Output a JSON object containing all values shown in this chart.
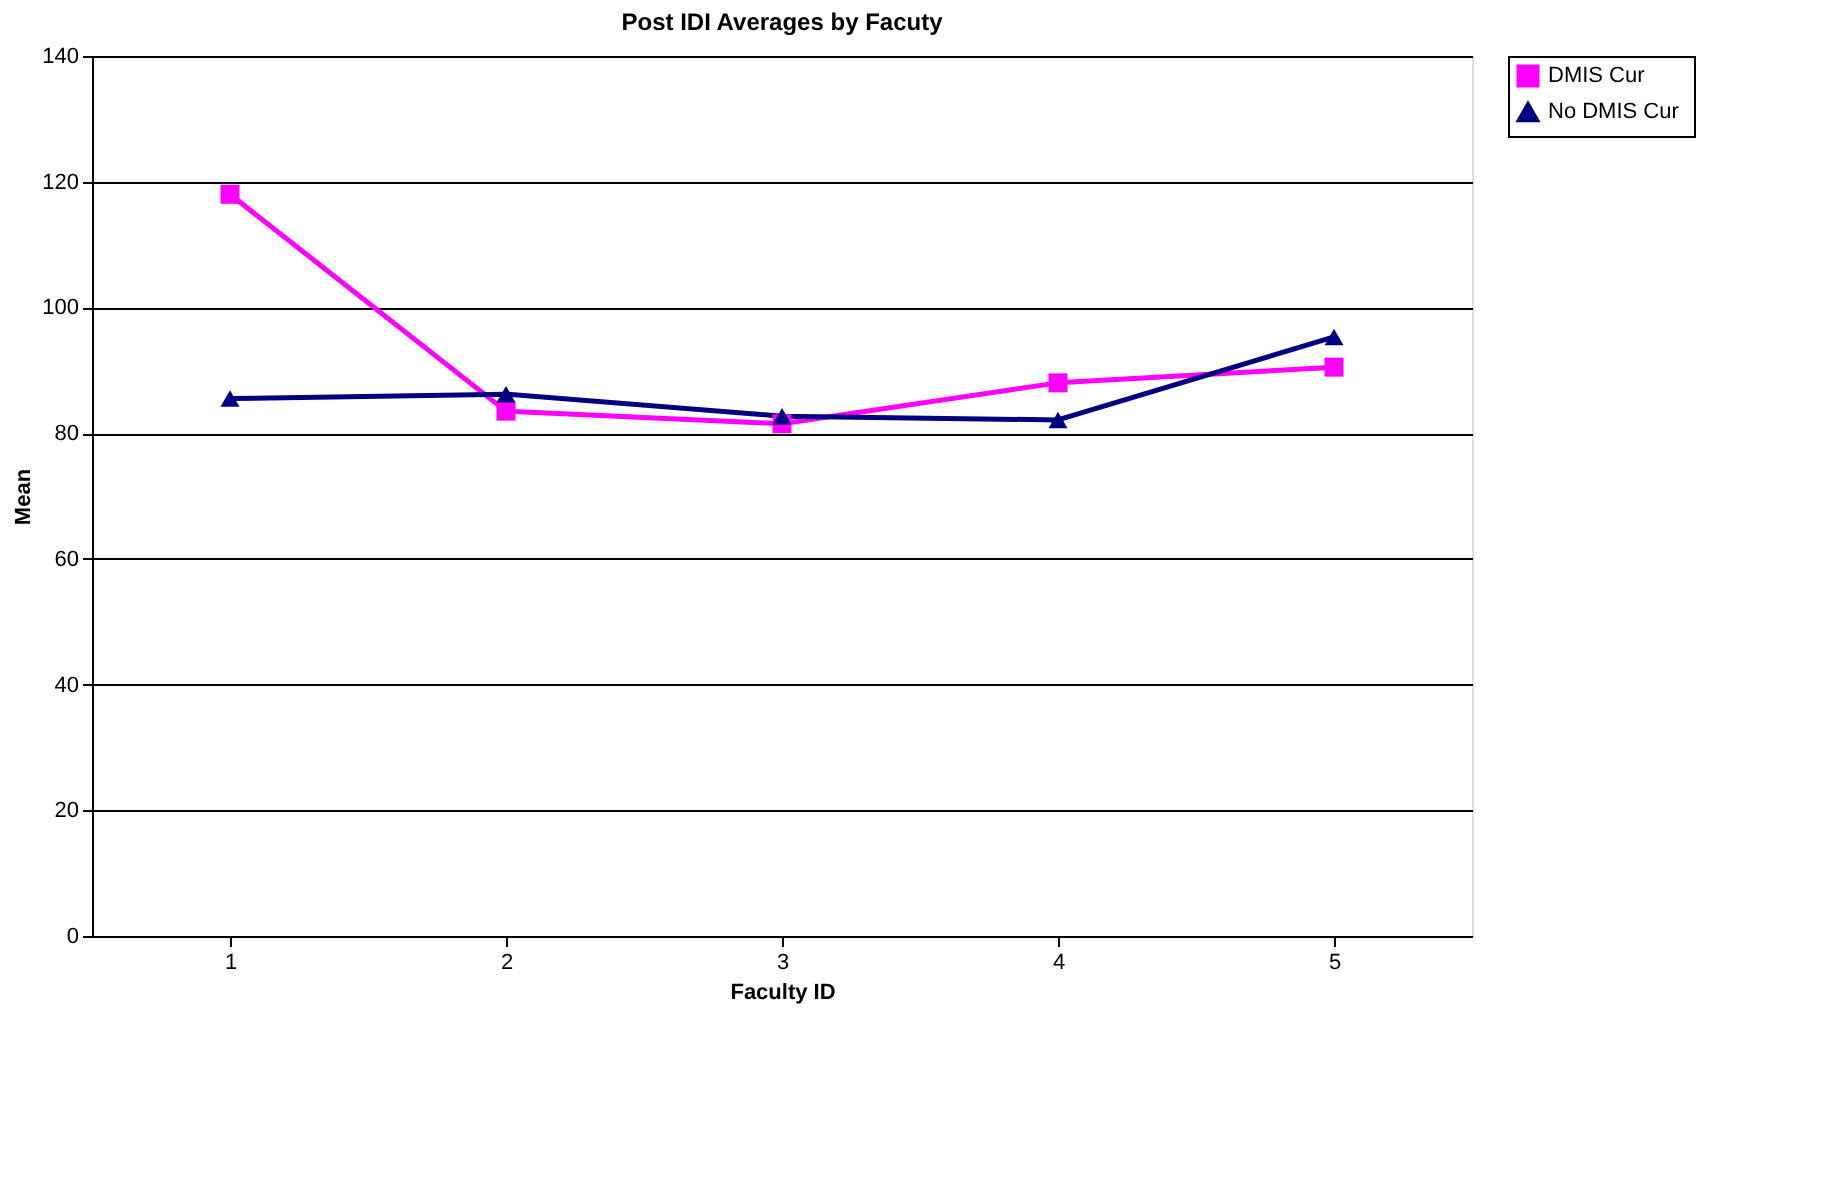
{
  "chart_data": {
    "type": "line",
    "title": "Post IDI Averages by Facuty",
    "xlabel": "Faculty ID",
    "ylabel": "Mean",
    "categories": [
      "1",
      "2",
      "3",
      "4",
      "5"
    ],
    "series": [
      {
        "name": "DMIS Cur",
        "color": "#ff00ff",
        "marker": "square",
        "values": [
          118,
          83.5,
          81.5,
          88,
          90.5
        ]
      },
      {
        "name": "No DMIS  Cur",
        "color": "#000080",
        "marker": "triangle",
        "values": [
          85.5,
          86.2,
          82.7,
          82.1,
          95.3
        ]
      }
    ],
    "ylim": [
      0,
      140
    ],
    "yticks": [
      0,
      20,
      40,
      60,
      80,
      100,
      120,
      140
    ],
    "grid": "y",
    "legend": "right"
  }
}
